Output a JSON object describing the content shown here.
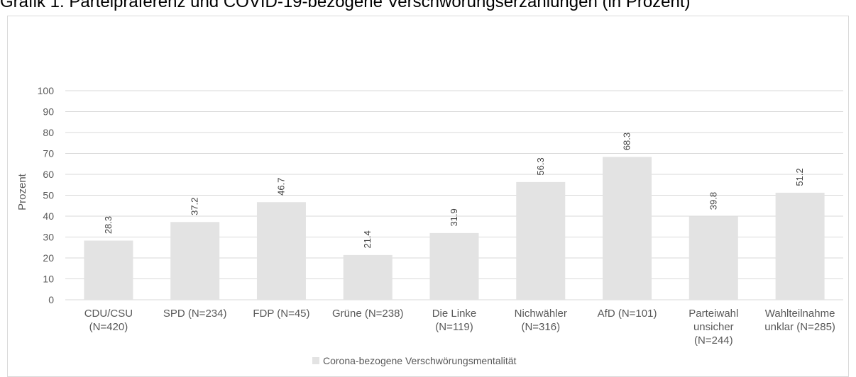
{
  "title": "Grafik 1: Parteipräferenz und COVID-19-bezogene Verschwörungserzählungen (in Prozent)",
  "colors": {
    "bar": "#e3e3e3",
    "grid": "#d9d9d9",
    "text": "#595959"
  },
  "chart_data": {
    "type": "bar",
    "title": "",
    "ylabel": "Prozent",
    "xlabel": "",
    "ylim": [
      0,
      100
    ],
    "yticks": [
      0,
      10,
      20,
      30,
      40,
      50,
      60,
      70,
      80,
      90,
      100
    ],
    "grid": true,
    "legend_position": "bottom",
    "categories": [
      [
        "CDU/CSU",
        "(N=420)"
      ],
      [
        "SPD (N=234)"
      ],
      [
        "FDP (N=45)"
      ],
      [
        "Grüne (N=238)"
      ],
      [
        "Die Linke",
        "(N=119)"
      ],
      [
        "Nichwähler",
        "(N=316)"
      ],
      [
        "AfD (N=101)"
      ],
      [
        "Parteiwahl",
        "unsicher",
        "(N=244)"
      ],
      [
        "Wahlteilnahme",
        "unklar (N=285)"
      ]
    ],
    "series": [
      {
        "name": "Corona-bezogene Verschwörungsmentalität",
        "values": [
          28.3,
          37.2,
          46.7,
          21.4,
          31.9,
          56.3,
          68.3,
          39.8,
          51.2
        ]
      }
    ]
  }
}
